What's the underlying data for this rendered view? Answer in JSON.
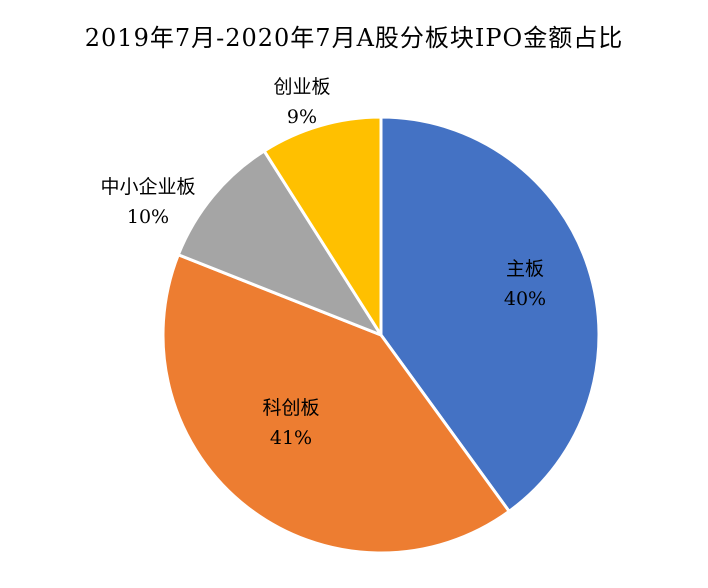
{
  "chart_data": {
    "type": "pie",
    "title": "2019年7月-2020年7月A股分板块IPO金额占比",
    "slices": [
      {
        "name": "主板",
        "value": 40,
        "label": "40%",
        "color": "#4472C4"
      },
      {
        "name": "科创板",
        "value": 41,
        "label": "41%",
        "color": "#ED7D31"
      },
      {
        "name": "中小企业板",
        "value": 10,
        "label": "10%",
        "color": "#A5A5A5"
      },
      {
        "name": "创业板",
        "value": 9,
        "label": "9%",
        "color": "#FFC000"
      }
    ],
    "start_at": "12 o'clock",
    "direction": "clockwise",
    "legend": "none"
  }
}
